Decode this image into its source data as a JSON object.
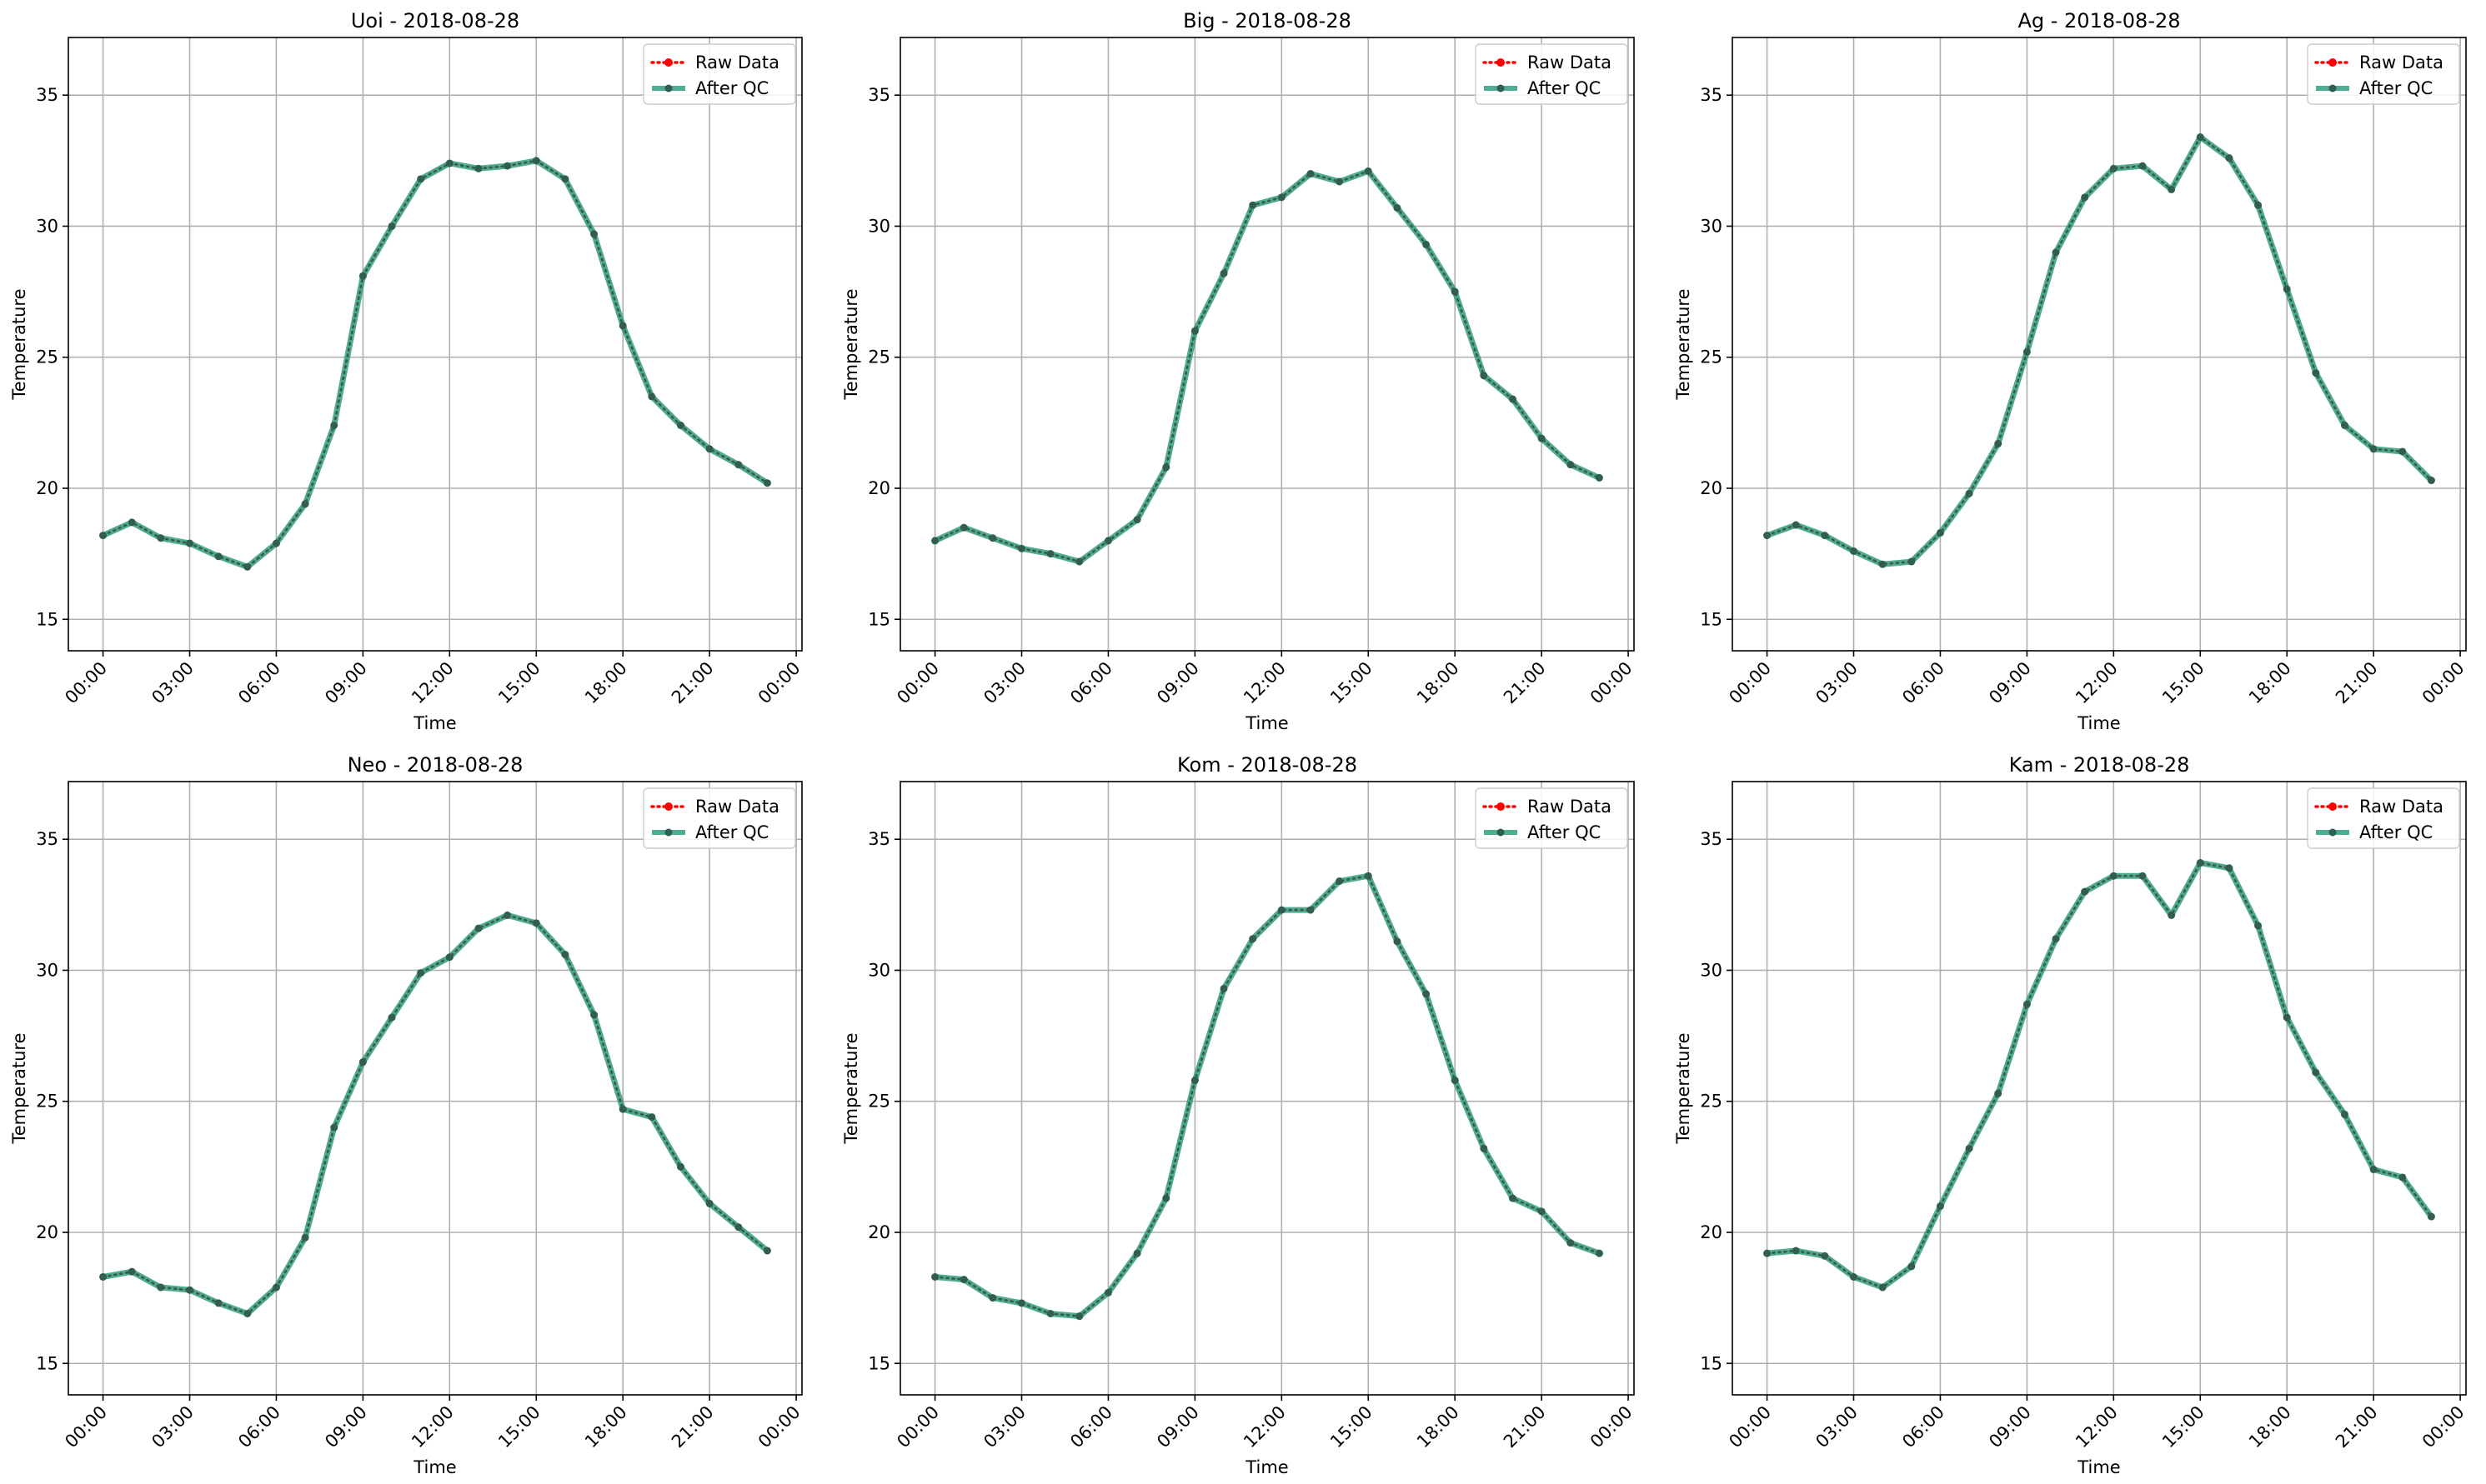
{
  "chart_data": [
    {
      "type": "line",
      "title": "Uoi - 2018-08-28",
      "xlabel": "Time",
      "ylabel": "Temperature",
      "x_tick_labels": [
        "00:00",
        "03:00",
        "06:00",
        "09:00",
        "12:00",
        "15:00",
        "18:00",
        "21:00",
        "00:00"
      ],
      "y_ticks": [
        15,
        20,
        25,
        30,
        35
      ],
      "ylim": [
        13.8,
        37.2
      ],
      "xlim_hours": [
        -1.2,
        24.2
      ],
      "grid": true,
      "legend_position": "top-right",
      "x": [
        "00:00",
        "01:00",
        "02:00",
        "03:00",
        "04:00",
        "05:00",
        "06:00",
        "07:00",
        "08:00",
        "09:00",
        "10:00",
        "11:00",
        "12:00",
        "13:00",
        "14:00",
        "15:00",
        "16:00",
        "17:00",
        "18:00",
        "19:00",
        "20:00",
        "21:00",
        "22:00",
        "23:00"
      ],
      "series": [
        {
          "name": "Raw Data",
          "color": "#ff0000",
          "style": "dotted",
          "values": [
            18.2,
            18.7,
            18.1,
            17.9,
            17.4,
            17.0,
            17.9,
            19.4,
            22.4,
            28.1,
            30.0,
            31.8,
            32.4,
            32.2,
            32.3,
            32.5,
            31.8,
            29.7,
            26.2,
            23.5,
            22.4,
            21.5,
            20.9,
            20.2
          ]
        },
        {
          "name": "After QC",
          "color": "#2e9e7e",
          "style": "solid",
          "values": [
            18.2,
            18.7,
            18.1,
            17.9,
            17.4,
            17.0,
            17.9,
            19.4,
            22.4,
            28.1,
            30.0,
            31.8,
            32.4,
            32.2,
            32.3,
            32.5,
            31.8,
            29.7,
            26.2,
            23.5,
            22.4,
            21.5,
            20.9,
            20.2
          ]
        }
      ]
    },
    {
      "type": "line",
      "title": "Big - 2018-08-28",
      "xlabel": "Time",
      "ylabel": "Temperature",
      "x_tick_labels": [
        "00:00",
        "03:00",
        "06:00",
        "09:00",
        "12:00",
        "15:00",
        "18:00",
        "21:00",
        "00:00"
      ],
      "y_ticks": [
        15,
        20,
        25,
        30,
        35
      ],
      "ylim": [
        13.8,
        37.2
      ],
      "xlim_hours": [
        -1.2,
        24.2
      ],
      "grid": true,
      "legend_position": "top-right",
      "x": [
        "00:00",
        "01:00",
        "02:00",
        "03:00",
        "04:00",
        "05:00",
        "06:00",
        "07:00",
        "08:00",
        "09:00",
        "10:00",
        "11:00",
        "12:00",
        "13:00",
        "14:00",
        "15:00",
        "16:00",
        "17:00",
        "18:00",
        "19:00",
        "20:00",
        "21:00",
        "22:00",
        "23:00"
      ],
      "series": [
        {
          "name": "Raw Data",
          "color": "#ff0000",
          "style": "dotted",
          "values": [
            18.0,
            18.5,
            18.1,
            17.7,
            17.5,
            17.2,
            18.0,
            18.8,
            20.8,
            26.0,
            28.2,
            30.8,
            31.1,
            32.0,
            31.7,
            32.1,
            30.7,
            29.3,
            27.5,
            24.3,
            23.4,
            21.9,
            20.9,
            20.4
          ]
        },
        {
          "name": "After QC",
          "color": "#2e9e7e",
          "style": "solid",
          "values": [
            18.0,
            18.5,
            18.1,
            17.7,
            17.5,
            17.2,
            18.0,
            18.8,
            20.8,
            26.0,
            28.2,
            30.8,
            31.1,
            32.0,
            31.7,
            32.1,
            30.7,
            29.3,
            27.5,
            24.3,
            23.4,
            21.9,
            20.9,
            20.4
          ]
        }
      ]
    },
    {
      "type": "line",
      "title": "Ag - 2018-08-28",
      "xlabel": "Time",
      "ylabel": "Temperature",
      "x_tick_labels": [
        "00:00",
        "03:00",
        "06:00",
        "09:00",
        "12:00",
        "15:00",
        "18:00",
        "21:00",
        "00:00"
      ],
      "y_ticks": [
        15,
        20,
        25,
        30,
        35
      ],
      "ylim": [
        13.8,
        37.2
      ],
      "xlim_hours": [
        -1.2,
        24.2
      ],
      "grid": true,
      "legend_position": "top-right",
      "x": [
        "00:00",
        "01:00",
        "02:00",
        "03:00",
        "04:00",
        "05:00",
        "06:00",
        "07:00",
        "08:00",
        "09:00",
        "10:00",
        "11:00",
        "12:00",
        "13:00",
        "14:00",
        "15:00",
        "16:00",
        "17:00",
        "18:00",
        "19:00",
        "20:00",
        "21:00",
        "22:00",
        "23:00"
      ],
      "series": [
        {
          "name": "Raw Data",
          "color": "#ff0000",
          "style": "dotted",
          "values": [
            18.2,
            18.6,
            18.2,
            17.6,
            17.1,
            17.2,
            18.3,
            19.8,
            21.7,
            25.2,
            29.0,
            31.1,
            32.2,
            32.3,
            31.4,
            33.4,
            32.6,
            30.8,
            27.6,
            24.4,
            22.4,
            21.5,
            21.4,
            20.3
          ]
        },
        {
          "name": "After QC",
          "color": "#2e9e7e",
          "style": "solid",
          "values": [
            18.2,
            18.6,
            18.2,
            17.6,
            17.1,
            17.2,
            18.3,
            19.8,
            21.7,
            25.2,
            29.0,
            31.1,
            32.2,
            32.3,
            31.4,
            33.4,
            32.6,
            30.8,
            27.6,
            24.4,
            22.4,
            21.5,
            21.4,
            20.3
          ]
        }
      ]
    },
    {
      "type": "line",
      "title": "Neo - 2018-08-28",
      "xlabel": "Time",
      "ylabel": "Temperature",
      "x_tick_labels": [
        "00:00",
        "03:00",
        "06:00",
        "09:00",
        "12:00",
        "15:00",
        "18:00",
        "21:00",
        "00:00"
      ],
      "y_ticks": [
        15,
        20,
        25,
        30,
        35
      ],
      "ylim": [
        13.8,
        37.2
      ],
      "xlim_hours": [
        -1.2,
        24.2
      ],
      "grid": true,
      "legend_position": "top-right",
      "x": [
        "00:00",
        "01:00",
        "02:00",
        "03:00",
        "04:00",
        "05:00",
        "06:00",
        "07:00",
        "08:00",
        "09:00",
        "10:00",
        "11:00",
        "12:00",
        "13:00",
        "14:00",
        "15:00",
        "16:00",
        "17:00",
        "18:00",
        "19:00",
        "20:00",
        "21:00",
        "22:00",
        "23:00"
      ],
      "series": [
        {
          "name": "Raw Data",
          "color": "#ff0000",
          "style": "dotted",
          "values": [
            18.3,
            18.5,
            17.9,
            17.8,
            17.3,
            16.9,
            17.9,
            19.8,
            24.0,
            26.5,
            28.2,
            29.9,
            30.5,
            31.6,
            32.1,
            31.8,
            30.6,
            28.3,
            24.7,
            24.4,
            22.5,
            21.1,
            20.2,
            19.3
          ]
        },
        {
          "name": "After QC",
          "color": "#2e9e7e",
          "style": "solid",
          "values": [
            18.3,
            18.5,
            17.9,
            17.8,
            17.3,
            16.9,
            17.9,
            19.8,
            24.0,
            26.5,
            28.2,
            29.9,
            30.5,
            31.6,
            32.1,
            31.8,
            30.6,
            28.3,
            24.7,
            24.4,
            22.5,
            21.1,
            20.2,
            19.3
          ]
        }
      ]
    },
    {
      "type": "line",
      "title": "Kom - 2018-08-28",
      "xlabel": "Time",
      "ylabel": "Temperature",
      "x_tick_labels": [
        "00:00",
        "03:00",
        "06:00",
        "09:00",
        "12:00",
        "15:00",
        "18:00",
        "21:00",
        "00:00"
      ],
      "y_ticks": [
        15,
        20,
        25,
        30,
        35
      ],
      "ylim": [
        13.8,
        37.2
      ],
      "xlim_hours": [
        -1.2,
        24.2
      ],
      "grid": true,
      "legend_position": "top-right",
      "x": [
        "00:00",
        "01:00",
        "02:00",
        "03:00",
        "04:00",
        "05:00",
        "06:00",
        "07:00",
        "08:00",
        "09:00",
        "10:00",
        "11:00",
        "12:00",
        "13:00",
        "14:00",
        "15:00",
        "16:00",
        "17:00",
        "18:00",
        "19:00",
        "20:00",
        "21:00",
        "22:00",
        "23:00"
      ],
      "series": [
        {
          "name": "Raw Data",
          "color": "#ff0000",
          "style": "dotted",
          "values": [
            18.3,
            18.2,
            17.5,
            17.3,
            16.9,
            16.8,
            17.7,
            19.2,
            21.3,
            25.8,
            29.3,
            31.2,
            32.3,
            32.3,
            33.4,
            33.6,
            31.1,
            29.1,
            25.8,
            23.2,
            21.3,
            20.8,
            19.6,
            19.2
          ]
        },
        {
          "name": "After QC",
          "color": "#2e9e7e",
          "style": "solid",
          "values": [
            18.3,
            18.2,
            17.5,
            17.3,
            16.9,
            16.8,
            17.7,
            19.2,
            21.3,
            25.8,
            29.3,
            31.2,
            32.3,
            32.3,
            33.4,
            33.6,
            31.1,
            29.1,
            25.8,
            23.2,
            21.3,
            20.8,
            19.6,
            19.2
          ]
        }
      ]
    },
    {
      "type": "line",
      "title": "Kam - 2018-08-28",
      "xlabel": "Time",
      "ylabel": "Temperature",
      "x_tick_labels": [
        "00:00",
        "03:00",
        "06:00",
        "09:00",
        "12:00",
        "15:00",
        "18:00",
        "21:00",
        "00:00"
      ],
      "y_ticks": [
        15,
        20,
        25,
        30,
        35
      ],
      "ylim": [
        13.8,
        37.2
      ],
      "xlim_hours": [
        -1.2,
        24.2
      ],
      "grid": true,
      "legend_position": "top-right",
      "x": [
        "00:00",
        "01:00",
        "02:00",
        "03:00",
        "04:00",
        "05:00",
        "06:00",
        "07:00",
        "08:00",
        "09:00",
        "10:00",
        "11:00",
        "12:00",
        "13:00",
        "14:00",
        "15:00",
        "16:00",
        "17:00",
        "18:00",
        "19:00",
        "20:00",
        "21:00",
        "22:00",
        "23:00"
      ],
      "series": [
        {
          "name": "Raw Data",
          "color": "#ff0000",
          "style": "dotted",
          "values": [
            19.2,
            19.3,
            19.1,
            18.3,
            17.9,
            18.7,
            21.0,
            23.2,
            25.3,
            28.7,
            31.2,
            33.0,
            33.6,
            33.6,
            32.1,
            34.1,
            33.9,
            31.7,
            28.2,
            26.1,
            24.5,
            22.4,
            22.1,
            20.6
          ]
        },
        {
          "name": "After QC",
          "color": "#2e9e7e",
          "style": "solid",
          "values": [
            19.2,
            19.3,
            19.1,
            18.3,
            17.9,
            18.7,
            21.0,
            23.2,
            25.3,
            28.7,
            31.2,
            33.0,
            33.6,
            33.6,
            32.1,
            34.1,
            33.9,
            31.7,
            28.2,
            26.1,
            24.5,
            22.4,
            22.1,
            20.6
          ]
        }
      ]
    }
  ]
}
